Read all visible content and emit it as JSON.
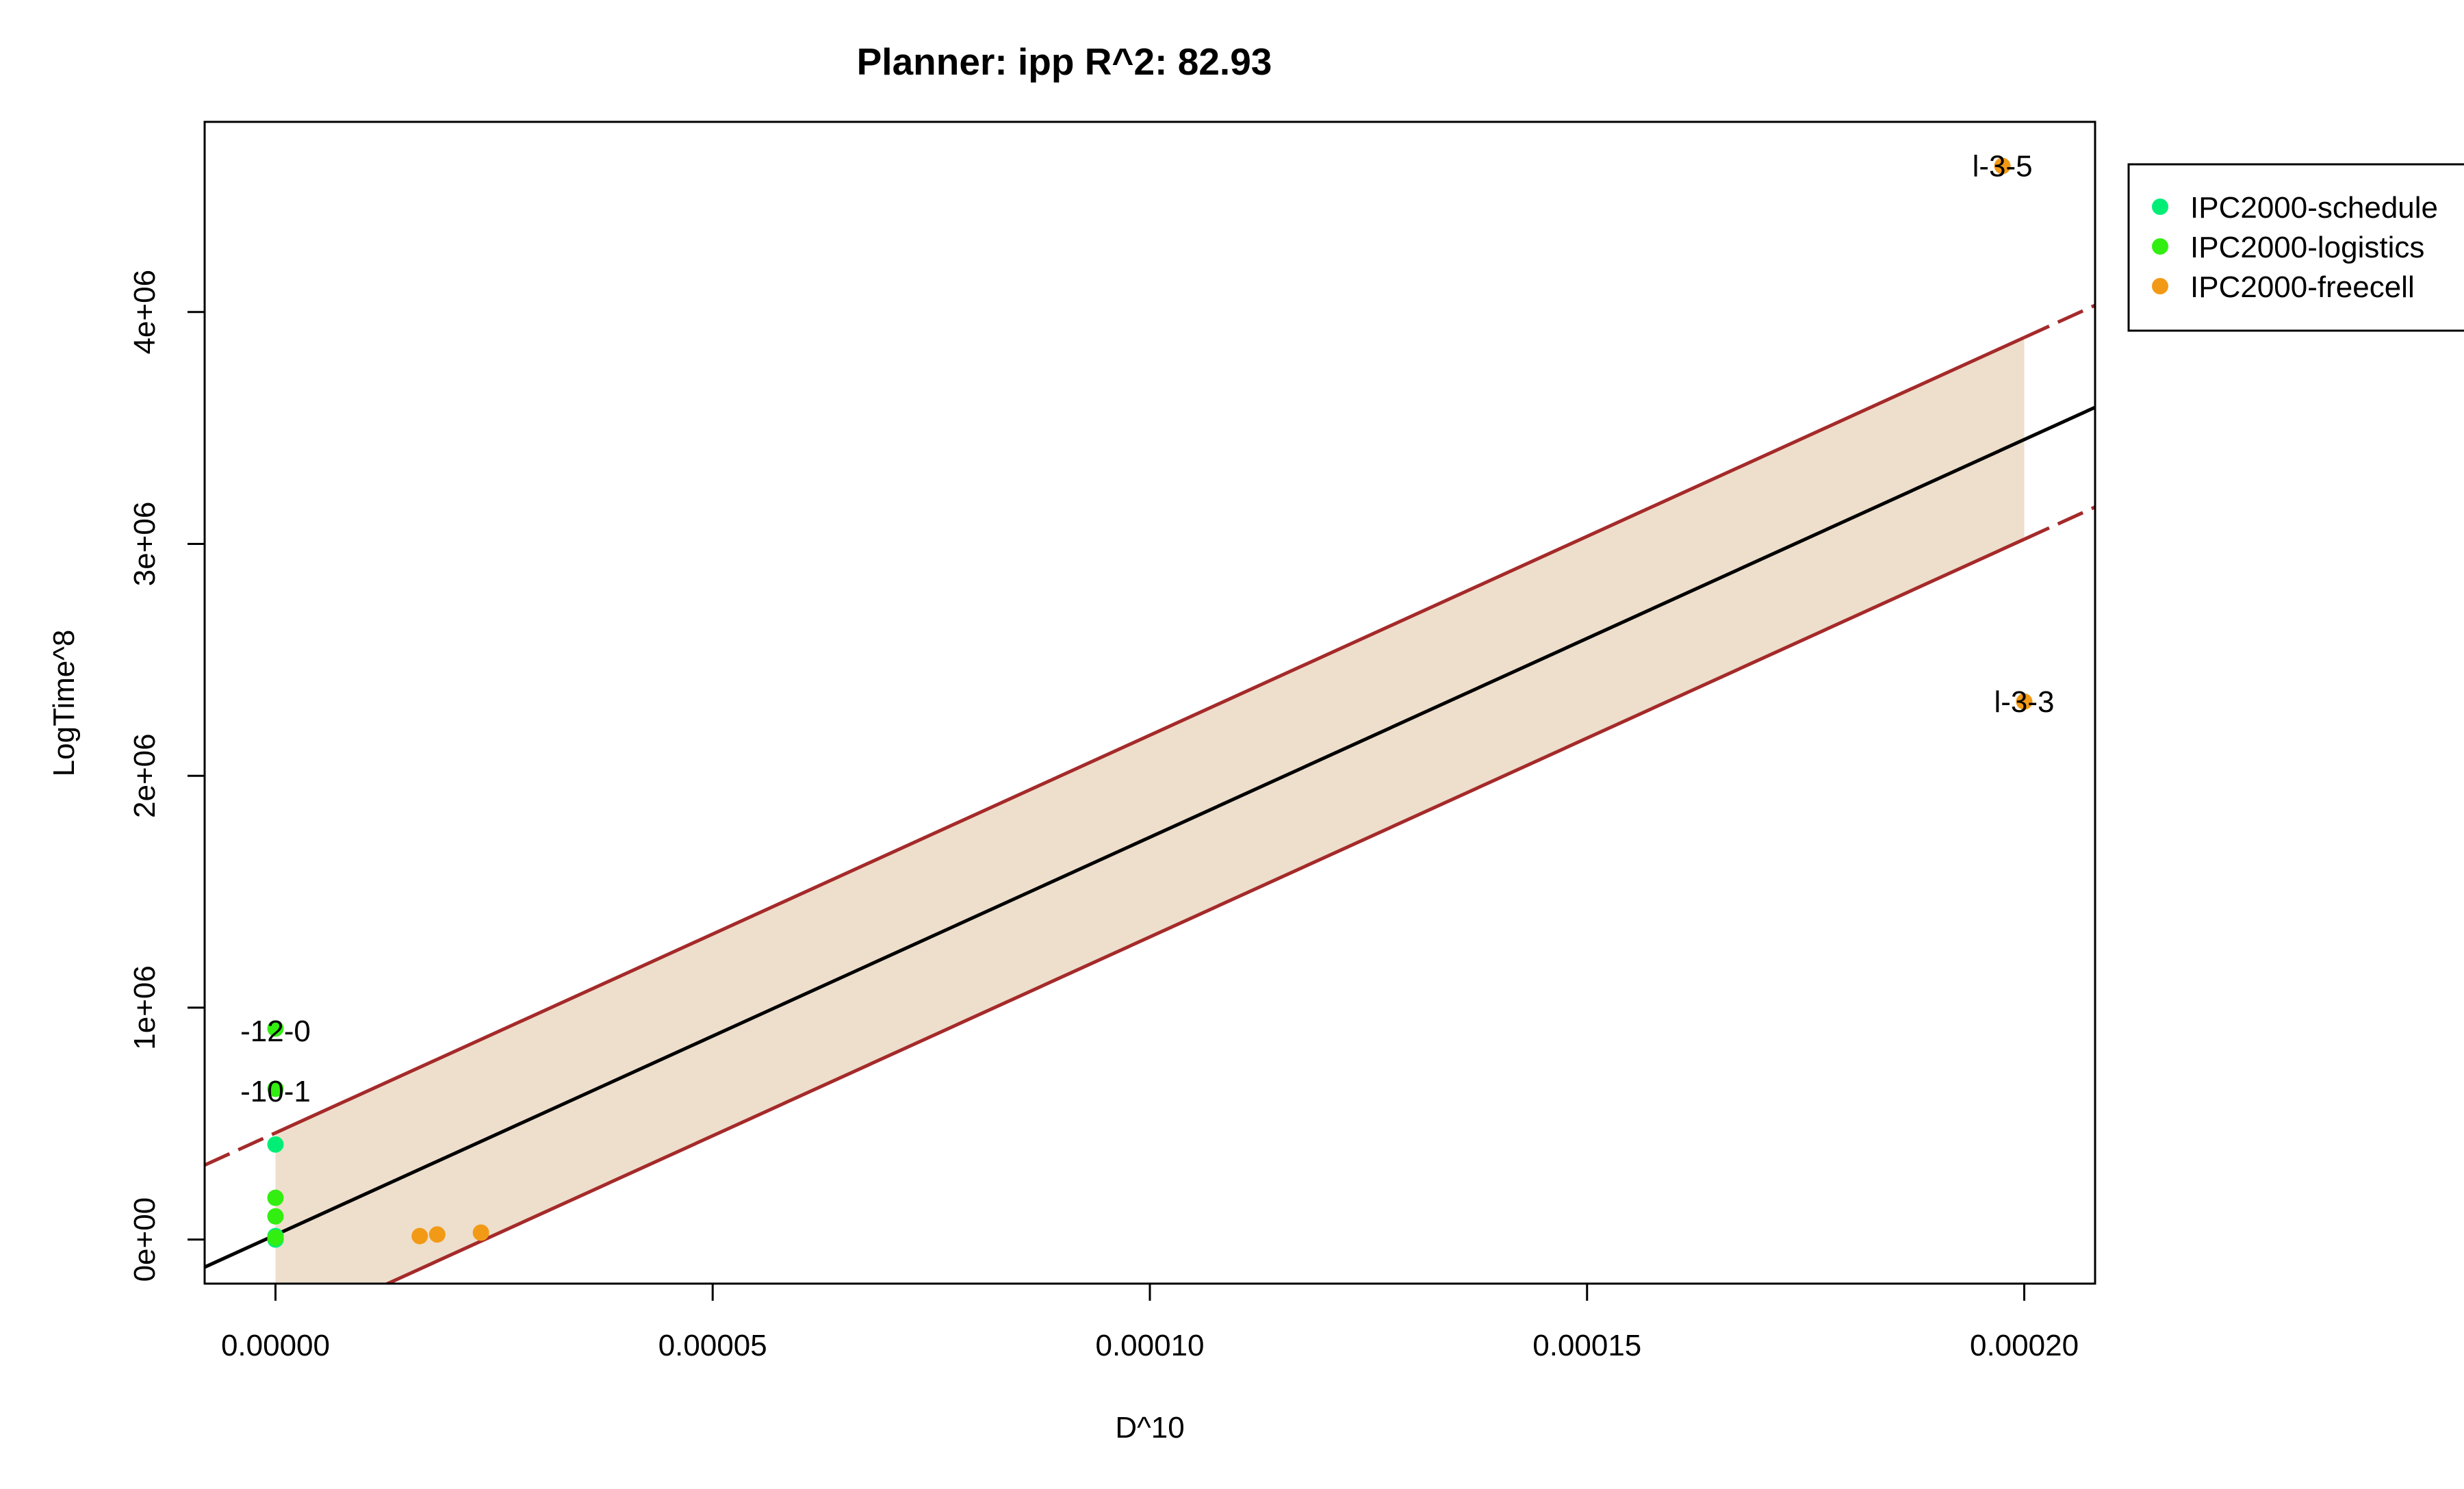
{
  "chart_data": {
    "type": "scatter",
    "title": "Planner: ipp R^2: 82.93",
    "xlabel": "D^10",
    "ylabel": "LogTime^8",
    "xlim": [
      -8.1e-06,
      0.0002081
    ],
    "ylim": [
      -190000,
      4820000
    ],
    "x_ticks": [
      0,
      5e-05,
      0.0001,
      0.00015,
      0.0002
    ],
    "x_tick_labels": [
      "0.00000",
      "0.00005",
      "0.00010",
      "0.00015",
      "0.00020"
    ],
    "y_ticks": [
      0,
      1000000,
      2000000,
      3000000,
      4000000
    ],
    "y_tick_labels": [
      "0e+00",
      "1e+06",
      "2e+06",
      "3e+06",
      "4e+06"
    ],
    "grid": false,
    "legend_position": "top-right",
    "series": [
      {
        "name": "IPC2000-schedule",
        "color": "#00ee76",
        "points": [
          [
            0,
            410000
          ],
          [
            0,
            15000
          ],
          [
            0,
            3000
          ],
          [
            0,
            0
          ]
        ]
      },
      {
        "name": "IPC2000-logistics",
        "color": "#33ee11",
        "points": [
          [
            0,
            910000
          ],
          [
            0,
            650000
          ],
          [
            0,
            180000
          ],
          [
            0,
            100000
          ],
          [
            0,
            8000
          ]
        ]
      },
      {
        "name": "IPC2000-freecell",
        "color": "#f29a16",
        "points": [
          [
            1.65e-05,
            15000
          ],
          [
            1.85e-05,
            22000
          ],
          [
            2.35e-05,
            30000
          ],
          [
            0.0001975,
            4630000
          ],
          [
            0.0002,
            2320000
          ]
        ]
      }
    ],
    "point_labels": [
      {
        "text": "-12-0",
        "x": 0,
        "y": 900000
      },
      {
        "text": "-10-1",
        "x": 0,
        "y": 640000
      },
      {
        "text": "l-3-5",
        "x": 0.0001975,
        "y": 4630000
      },
      {
        "text": "l-3-3",
        "x": 0.0002,
        "y": 2320000
      }
    ],
    "fit_line": {
      "intercept": 20000,
      "slope": 17150000000,
      "color": "#000000"
    },
    "prediction_band": {
      "upper_offset": 440000,
      "lower_offset": -430000,
      "x_range": [
        0,
        0.0002
      ],
      "line_color": "#a52a2a",
      "fill_color": "#eddfcc"
    }
  }
}
